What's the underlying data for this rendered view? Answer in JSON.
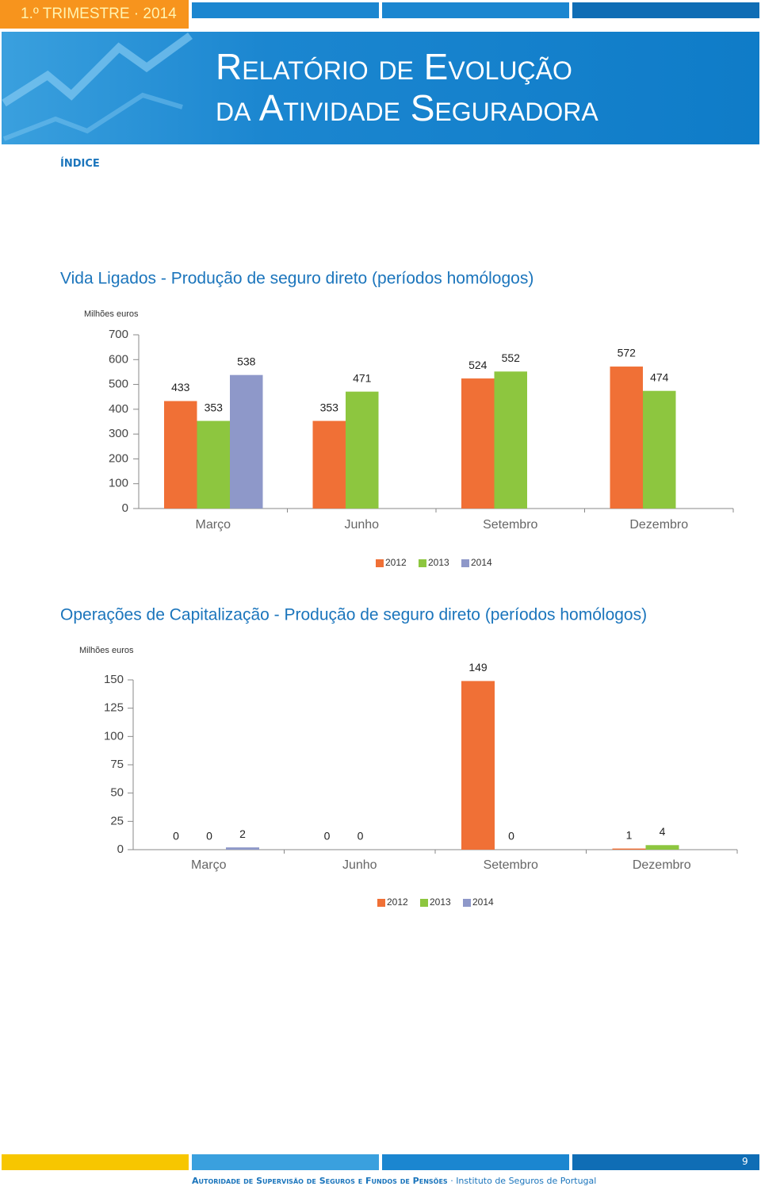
{
  "header": {
    "tag": "1.º TRIMESTRE · 2014",
    "title_line1": "Relatório de Evolução",
    "title_line2": "da Atividade Seguradora"
  },
  "nav": "ÍNDICE",
  "chart_data": [
    {
      "type": "bar",
      "title": "Vida Ligados - Produção de seguro direto (períodos homólogos)",
      "y_label": "Milhões euros",
      "categories": [
        "Março",
        "Junho",
        "Setembro",
        "Dezembro"
      ],
      "series": [
        {
          "name": "2012",
          "color": "#f07036",
          "values": [
            433,
            353,
            524,
            572
          ]
        },
        {
          "name": "2013",
          "color": "#8dc63f",
          "values": [
            353,
            471,
            552,
            474
          ]
        },
        {
          "name": "2014",
          "color": "#8e98c9",
          "values": [
            538,
            null,
            null,
            null
          ]
        }
      ],
      "ylim": [
        0,
        700
      ],
      "yticks": [
        0,
        100,
        200,
        300,
        400,
        500,
        600,
        700
      ]
    },
    {
      "type": "bar",
      "title": "Operações de Capitalização - Produção de seguro direto (períodos homólogos)",
      "y_label": "Milhões euros",
      "categories": [
        "Março",
        "Junho",
        "Setembro",
        "Dezembro"
      ],
      "series": [
        {
          "name": "2012",
          "color": "#f07036",
          "values": [
            0,
            0,
            149,
            1
          ]
        },
        {
          "name": "2013",
          "color": "#8dc63f",
          "values": [
            0,
            0,
            0,
            4
          ]
        },
        {
          "name": "2014",
          "color": "#8e98c9",
          "values": [
            2,
            null,
            null,
            null
          ]
        }
      ],
      "ylim": [
        0,
        150
      ],
      "yticks": [
        0,
        25,
        50,
        75,
        100,
        125,
        150
      ]
    }
  ],
  "footer": {
    "authority": "Autoridade de Supervisão de Seguros e Fundos de Pensões",
    "separator": "·",
    "institute": "Instituto de Seguros de Portugal",
    "page": "9"
  }
}
